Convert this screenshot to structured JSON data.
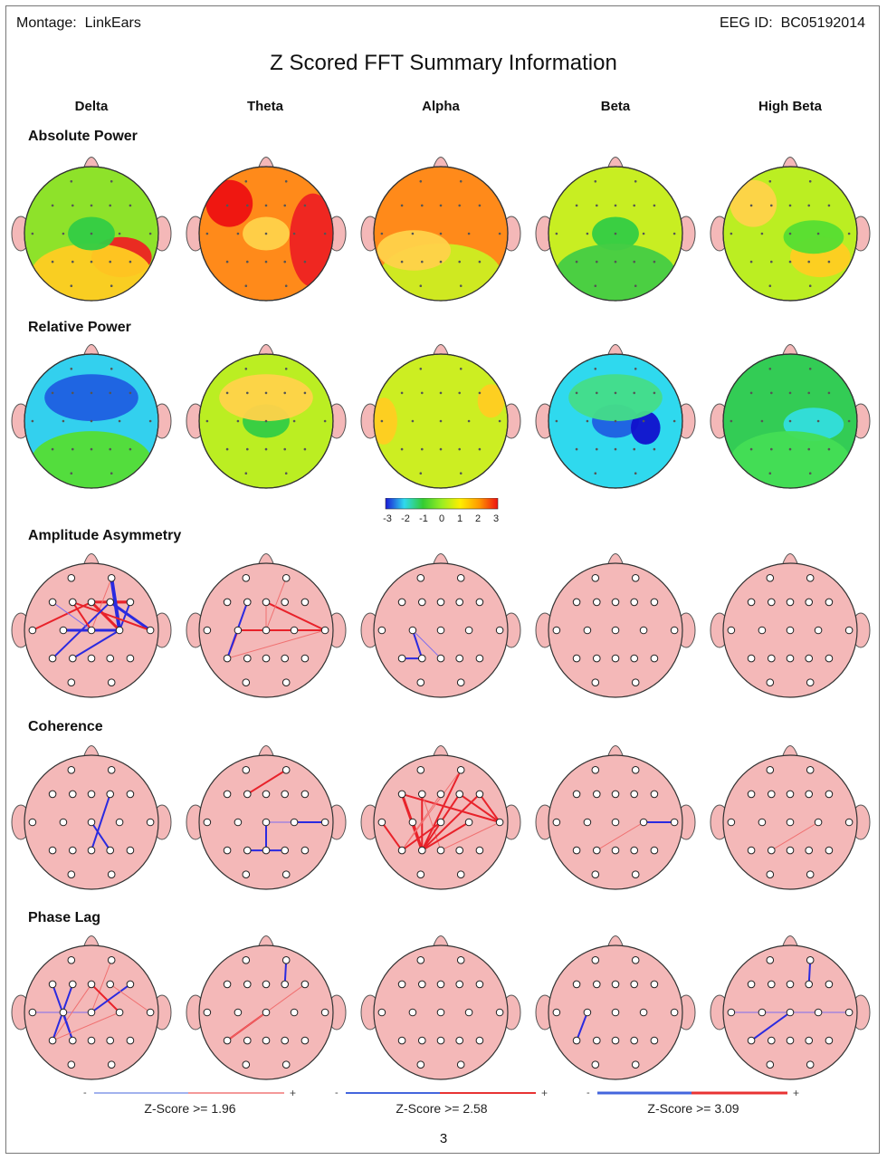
{
  "header": {
    "montage_label": "Montage:",
    "montage_value": "LinkEars",
    "eeg_id_label": "EEG ID:",
    "eeg_id_value": "BC05192014",
    "title": "Z Scored FFT Summary Information"
  },
  "bands": [
    "Delta",
    "Theta",
    "Alpha",
    "Beta",
    "High Beta"
  ],
  "rows": {
    "absolute_power": "Absolute Power",
    "relative_power": "Relative Power",
    "amplitude_asymmetry": "Amplitude Asymmetry",
    "coherence": "Coherence",
    "phase_lag": "Phase Lag"
  },
  "colorbar": {
    "ticks": [
      "-3",
      "-2",
      "-1",
      "0",
      "1",
      "2",
      "3"
    ],
    "colors": [
      "#1a1ad6",
      "#2fd9ee",
      "#33cc33",
      "#99ee22",
      "#ffee00",
      "#ff9900",
      "#ee1111"
    ]
  },
  "maps": {
    "absolute_power": [
      {
        "base": "#8ee22a",
        "blobs": [
          {
            "region": "right-posterior",
            "color": "#ee2222"
          },
          {
            "region": "posterior",
            "color": "#ffcc22"
          },
          {
            "region": "center",
            "color": "#33cc44"
          }
        ]
      },
      {
        "base": "#ff8a1a",
        "blobs": [
          {
            "region": "left-frontal",
            "color": "#ee1111"
          },
          {
            "region": "right",
            "color": "#ee2222"
          },
          {
            "region": "center",
            "color": "#ffd24a"
          }
        ]
      },
      {
        "base": "#ff8a1a",
        "blobs": [
          {
            "region": "posterior",
            "color": "#ccee22"
          },
          {
            "region": "left-posterior",
            "color": "#ffd24a"
          }
        ]
      },
      {
        "base": "#c8ee22",
        "blobs": [
          {
            "region": "center",
            "color": "#33cc44"
          },
          {
            "region": "posterior",
            "color": "#44cc44"
          }
        ]
      },
      {
        "base": "#bbee22",
        "blobs": [
          {
            "region": "right-posterior",
            "color": "#ffcc22"
          },
          {
            "region": "center-right",
            "color": "#55dd33"
          },
          {
            "region": "left-frontal",
            "color": "#ffd24a"
          }
        ]
      }
    ],
    "relative_power": [
      {
        "base": "#33d0ee",
        "blobs": [
          {
            "region": "frontal",
            "color": "#1f5fe0"
          },
          {
            "region": "posterior",
            "color": "#55dd33"
          }
        ]
      },
      {
        "base": "#bbee22",
        "blobs": [
          {
            "region": "center",
            "color": "#33cc44"
          },
          {
            "region": "frontal",
            "color": "#ffd24a"
          }
        ]
      },
      {
        "base": "#ccee22",
        "blobs": [
          {
            "region": "left",
            "color": "#ffcc22"
          },
          {
            "region": "right-frontal",
            "color": "#ffcc22"
          }
        ]
      },
      {
        "base": "#2fd9ee",
        "blobs": [
          {
            "region": "center",
            "color": "#1f5fe0"
          },
          {
            "region": "right-center",
            "color": "#1111cc"
          },
          {
            "region": "frontal",
            "color": "#44dd88"
          }
        ]
      },
      {
        "base": "#33cc55",
        "blobs": [
          {
            "region": "center-right",
            "color": "#33dddd"
          },
          {
            "region": "posterior",
            "color": "#44dd55"
          }
        ]
      }
    ]
  },
  "connections": {
    "amplitude_asymmetry": [
      [
        [
          4,
          6,
          "red",
          3
        ],
        [
          5,
          6,
          "red",
          3
        ],
        [
          4,
          7,
          "red",
          2
        ],
        [
          6,
          10,
          "blue",
          2
        ],
        [
          5,
          11,
          "blue",
          3
        ],
        [
          1,
          10,
          "blue",
          4
        ],
        [
          3,
          11,
          "red",
          2
        ],
        [
          1,
          9,
          "red",
          1
        ],
        [
          8,
          10,
          "blue",
          3
        ],
        [
          4,
          10,
          "red",
          3
        ],
        [
          12,
          5,
          "blue",
          2
        ],
        [
          10,
          13,
          "blue",
          2
        ],
        [
          2,
          9,
          "blue",
          1
        ],
        [
          3,
          9,
          "red",
          2
        ]
      ],
      [
        [
          8,
          12,
          "red",
          2
        ],
        [
          4,
          11,
          "red",
          2
        ],
        [
          4,
          9,
          "red",
          1
        ],
        [
          3,
          12,
          "blue",
          2
        ],
        [
          8,
          9,
          "red",
          2
        ],
        [
          10,
          11,
          "red",
          2
        ],
        [
          9,
          10,
          "red",
          2
        ],
        [
          11,
          12,
          "red",
          1
        ],
        [
          1,
          9,
          "red",
          1
        ]
      ],
      [
        [
          8,
          13,
          "blue",
          2
        ],
        [
          13,
          12,
          "blue",
          2
        ],
        [
          8,
          14,
          "blue",
          1
        ]
      ],
      [],
      []
    ],
    "coherence": [
      [
        [
          9,
          15,
          "blue",
          2
        ],
        [
          5,
          14,
          "blue",
          2
        ]
      ],
      [
        [
          1,
          3,
          "red",
          2
        ],
        [
          9,
          14,
          "blue",
          2
        ],
        [
          10,
          11,
          "blue",
          2
        ],
        [
          13,
          15,
          "blue",
          2
        ],
        [
          9,
          10,
          "blue",
          1
        ]
      ],
      [
        [
          1,
          13,
          "red",
          2
        ],
        [
          2,
          13,
          "red",
          3
        ],
        [
          3,
          13,
          "red",
          2
        ],
        [
          8,
          13,
          "red",
          3
        ],
        [
          7,
          12,
          "red",
          2
        ],
        [
          2,
          11,
          "red",
          2
        ],
        [
          3,
          14,
          "red",
          1
        ],
        [
          4,
          12,
          "red",
          1
        ],
        [
          6,
          13,
          "red",
          2
        ],
        [
          5,
          13,
          "red",
          2
        ],
        [
          9,
          12,
          "red",
          2
        ],
        [
          10,
          13,
          "red",
          2
        ],
        [
          11,
          14,
          "red",
          1
        ],
        [
          1,
          12,
          "red",
          1
        ],
        [
          5,
          11,
          "red",
          2
        ],
        [
          6,
          11,
          "red",
          2
        ]
      ],
      [
        [
          10,
          11,
          "blue",
          2
        ],
        [
          10,
          13,
          "red",
          1
        ]
      ],
      [
        [
          10,
          13,
          "red",
          1
        ]
      ]
    ],
    "phase_lag": [
      [
        [
          1,
          9,
          "red",
          1
        ],
        [
          4,
          10,
          "red",
          2
        ],
        [
          6,
          9,
          "blue",
          2
        ],
        [
          7,
          9,
          "blue",
          1
        ],
        [
          8,
          13,
          "blue",
          2
        ],
        [
          5,
          11,
          "red",
          1
        ],
        [
          4,
          12,
          "red",
          1
        ],
        [
          3,
          12,
          "blue",
          2
        ],
        [
          2,
          13,
          "blue",
          2
        ],
        [
          10,
          12,
          "red",
          1
        ]
      ],
      [
        [
          1,
          5,
          "blue",
          2
        ],
        [
          12,
          9,
          "red",
          2
        ],
        [
          12,
          6,
          "red",
          1
        ]
      ],
      [],
      [
        [
          8,
          12,
          "blue",
          2
        ]
      ],
      [
        [
          1,
          5,
          "blue",
          2
        ],
        [
          9,
          12,
          "blue",
          2
        ],
        [
          9,
          11,
          "blue",
          1
        ],
        [
          9,
          7,
          "blue",
          1
        ]
      ]
    ]
  },
  "legends": [
    {
      "minus": "-",
      "plus": "+",
      "label": "Z-Score >= 1.96",
      "strength": 1
    },
    {
      "minus": "-",
      "plus": "+",
      "label": "Z-Score >= 2.58",
      "strength": 2
    },
    {
      "minus": "-",
      "plus": "+",
      "label": "Z-Score >= 3.09",
      "strength": 3
    }
  ],
  "page_number": "3"
}
